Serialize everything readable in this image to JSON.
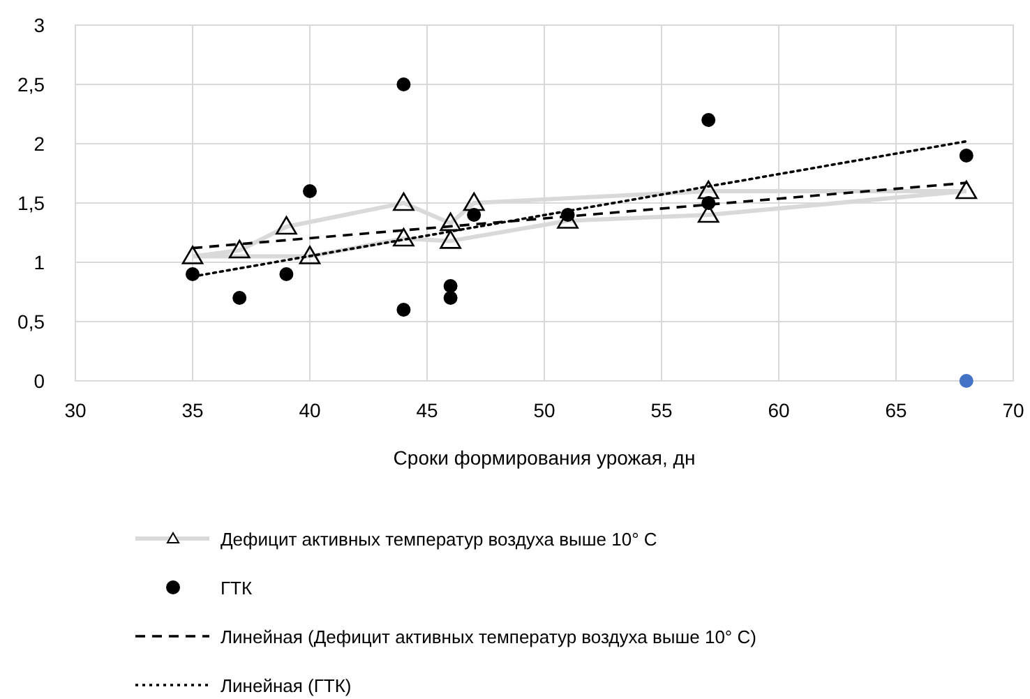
{
  "chart_data": {
    "type": "scatter",
    "xlabel": "Сроки формирования урожая, дн",
    "xlim": [
      30,
      70
    ],
    "xticks": [
      30,
      35,
      40,
      45,
      50,
      55,
      60,
      65,
      70
    ],
    "ylim": [
      0,
      3
    ],
    "yticks": [
      0,
      {
        "value": 0.5,
        "label": "0,5"
      },
      1,
      {
        "value": 1.5,
        "label": "1,5"
      },
      2,
      {
        "value": 2.5,
        "label": "2,5"
      },
      3
    ],
    "grid": true,
    "legend": "bottom",
    "series": [
      {
        "name": "Дефицит активных температур воздуха выше 10° С",
        "color": "#000000",
        "marker": "triangle",
        "x": [
          35,
          37,
          39,
          44,
          46,
          47,
          57,
          68,
          57,
          51,
          46,
          44,
          40
        ],
        "values": [
          1.05,
          1.1,
          1.3,
          1.5,
          1.33,
          1.5,
          1.6,
          1.6,
          1.4,
          1.35,
          1.18,
          1.2,
          1.05
        ]
      },
      {
        "type": "line",
        "color": "#d9d9d9",
        "marker": "none",
        "line_style": "solid",
        "x": [
          35,
          37,
          39,
          44,
          46,
          47,
          57,
          68
        ],
        "values": [
          1.05,
          1.1,
          1.3,
          1.5,
          1.33,
          1.5,
          1.6,
          1.6
        ]
      },
      {
        "type": "line",
        "color": "#d9d9d9",
        "marker": "none",
        "line_style": "solid",
        "x": [
          35,
          40,
          44,
          46,
          51,
          57,
          68
        ],
        "values": [
          1.05,
          1.05,
          1.2,
          1.18,
          1.35,
          1.4,
          1.6
        ]
      },
      {
        "name": "ГТК",
        "type": "scatter",
        "color": "#000000",
        "marker": "circle",
        "x": [
          35,
          37,
          39,
          40,
          44,
          44,
          46,
          46,
          47,
          51,
          57,
          57,
          68
        ],
        "values": [
          0.9,
          0.7,
          0.9,
          1.6,
          2.5,
          0.6,
          0.8,
          0.7,
          1.4,
          1.4,
          2.2,
          1.5,
          1.9
        ]
      },
      {
        "name": "Линейная (Дефицит активных температур воздуха выше 10° С)",
        "type": "line",
        "color": "#000000",
        "marker": "none",
        "line_style": "dashed",
        "x": [
          35,
          68
        ],
        "values": [
          1.12,
          1.67
        ]
      },
      {
        "name": "Линейная (ГТК)",
        "type": "line",
        "color": "#000000",
        "marker": "none",
        "line_style": "dotted",
        "x": [
          35,
          68
        ],
        "values": [
          0.88,
          2.02
        ]
      },
      {
        "type": "scatter",
        "color": "#4472c4",
        "marker": "circle",
        "x": [
          68
        ],
        "values": [
          0
        ]
      }
    ]
  }
}
